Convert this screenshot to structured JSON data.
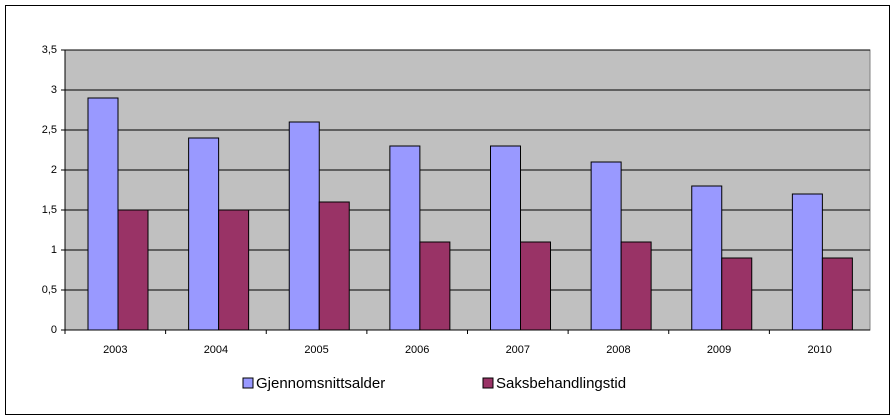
{
  "chart_data": {
    "type": "bar",
    "categories": [
      "2003",
      "2004",
      "2005",
      "2006",
      "2007",
      "2008",
      "2009",
      "2010"
    ],
    "series": [
      {
        "name": "Gjennomsnittsalder",
        "color": "#9999ff",
        "values": [
          2.9,
          2.4,
          2.6,
          2.3,
          2.3,
          2.1,
          1.8,
          1.7
        ]
      },
      {
        "name": "Saksbehandlingstid",
        "color": "#993366",
        "values": [
          1.5,
          1.5,
          1.6,
          1.1,
          1.1,
          1.1,
          0.9,
          0.9
        ]
      }
    ],
    "ylim": [
      0,
      3.5
    ],
    "yticks": [
      0,
      {
        "value": 0.5,
        "label": "0,5"
      },
      1,
      {
        "value": 1.5,
        "label": "1,5"
      },
      2,
      {
        "value": 2.5,
        "label": "2,5"
      },
      3,
      {
        "value": 3.5,
        "label": "3,5"
      }
    ],
    "grid": true,
    "legend": "bottom"
  }
}
